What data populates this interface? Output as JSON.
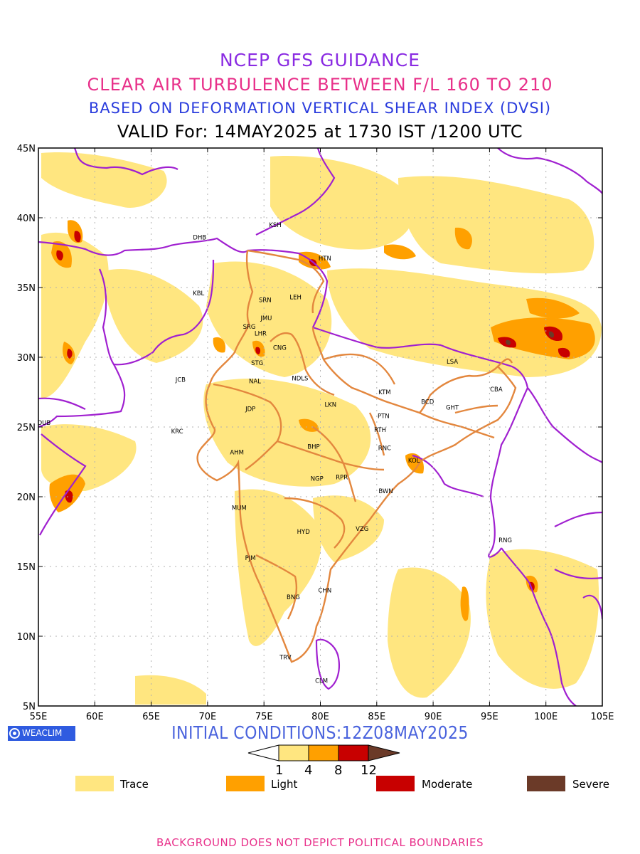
{
  "header": {
    "line1": "NCEP GFS GUIDANCE",
    "line2": "CLEAR AIR TURBULENCE BETWEEN F/L 160 TO 210",
    "line3": "BASED ON DEFORMATION VERTICAL SHEAR INDEX (DVSI)",
    "line4": "VALID For: 14MAY2025 at 1730 IST /1200 UTC"
  },
  "map": {
    "lon_range": [
      55,
      105
    ],
    "lat_range": [
      5,
      45
    ],
    "x_ticks": [
      "55E",
      "60E",
      "65E",
      "70E",
      "75E",
      "80E",
      "85E",
      "90E",
      "95E",
      "100E",
      "105E"
    ],
    "y_ticks": [
      "45N",
      "40N",
      "35N",
      "30N",
      "25N",
      "20N",
      "15N",
      "10N",
      "5N"
    ],
    "stations": [
      {
        "code": "KSH",
        "lon": 76.0,
        "lat": 39.5
      },
      {
        "code": "DHB",
        "lon": 69.3,
        "lat": 38.6
      },
      {
        "code": "HTN",
        "lon": 80.4,
        "lat": 37.1
      },
      {
        "code": "KBL",
        "lon": 69.2,
        "lat": 34.6
      },
      {
        "code": "SRN",
        "lon": 75.1,
        "lat": 34.1
      },
      {
        "code": "LEH",
        "lon": 77.8,
        "lat": 34.3
      },
      {
        "code": "JMU",
        "lon": 75.2,
        "lat": 32.8
      },
      {
        "code": "SRG",
        "lon": 73.7,
        "lat": 32.2
      },
      {
        "code": "LHR",
        "lon": 74.7,
        "lat": 31.7
      },
      {
        "code": "CNG",
        "lon": 76.4,
        "lat": 30.7
      },
      {
        "code": "STG",
        "lon": 74.4,
        "lat": 29.6
      },
      {
        "code": "LSA",
        "lon": 91.7,
        "lat": 29.7
      },
      {
        "code": "NDLS",
        "lon": 78.2,
        "lat": 28.5
      },
      {
        "code": "JCB",
        "lon": 67.6,
        "lat": 28.4
      },
      {
        "code": "NAL",
        "lon": 74.2,
        "lat": 28.3
      },
      {
        "code": "KTM",
        "lon": 85.7,
        "lat": 27.5
      },
      {
        "code": "CBA",
        "lon": 95.6,
        "lat": 27.7
      },
      {
        "code": "BCD",
        "lon": 89.5,
        "lat": 26.8
      },
      {
        "code": "GHT",
        "lon": 91.7,
        "lat": 26.4
      },
      {
        "code": "JDP",
        "lon": 73.8,
        "lat": 26.3
      },
      {
        "code": "LKN",
        "lon": 80.9,
        "lat": 26.6
      },
      {
        "code": "PTN",
        "lon": 85.6,
        "lat": 25.8
      },
      {
        "code": "DUB",
        "lon": 55.5,
        "lat": 25.3
      },
      {
        "code": "RTH",
        "lon": 85.3,
        "lat": 24.8
      },
      {
        "code": "KRC",
        "lon": 67.3,
        "lat": 24.7
      },
      {
        "code": "RNC",
        "lon": 85.7,
        "lat": 23.5
      },
      {
        "code": "AHM",
        "lon": 72.6,
        "lat": 23.2
      },
      {
        "code": "BHP",
        "lon": 79.4,
        "lat": 23.6
      },
      {
        "code": "KOL",
        "lon": 88.3,
        "lat": 22.6
      },
      {
        "code": "NGP",
        "lon": 79.7,
        "lat": 21.3
      },
      {
        "code": "RPR",
        "lon": 81.9,
        "lat": 21.4
      },
      {
        "code": "BWN",
        "lon": 85.8,
        "lat": 20.4
      },
      {
        "code": "MUM",
        "lon": 72.8,
        "lat": 19.2
      },
      {
        "code": "HYD",
        "lon": 78.5,
        "lat": 17.5
      },
      {
        "code": "VZG",
        "lon": 83.7,
        "lat": 17.7
      },
      {
        "code": "RNG",
        "lon": 96.4,
        "lat": 16.9
      },
      {
        "code": "PJM",
        "lon": 73.8,
        "lat": 15.6
      },
      {
        "code": "CHN",
        "lon": 80.4,
        "lat": 13.3
      },
      {
        "code": "BNG",
        "lon": 77.6,
        "lat": 12.8
      },
      {
        "code": "TRV",
        "lon": 76.9,
        "lat": 8.5
      },
      {
        "code": "CLM",
        "lon": 80.1,
        "lat": 6.8
      }
    ],
    "colors": {
      "trace": "#ffe680",
      "light": "#ffa000",
      "moderate": "#c80000",
      "severe": "#6b3a28",
      "india_boundary": "#e3873e",
      "country_boundary": "#a020d0",
      "grid": "#b0b0b0"
    }
  },
  "logo": {
    "icon": "weaclim-logo-icon",
    "text": "WEACLIM"
  },
  "initial_conditions": "INITIAL CONDITIONS:12Z08MAY2025",
  "colorbar": {
    "ticks": [
      "1",
      "4",
      "8",
      "12"
    ]
  },
  "legend": [
    {
      "label": "Trace",
      "color": "#ffe680"
    },
    {
      "label": "Light",
      "color": "#ffa000"
    },
    {
      "label": "Moderate",
      "color": "#c80000"
    },
    {
      "label": "Severe",
      "color": "#6b3a28"
    }
  ],
  "footer": "BACKGROUND DOES NOT DEPICT POLITICAL BOUNDARIES"
}
